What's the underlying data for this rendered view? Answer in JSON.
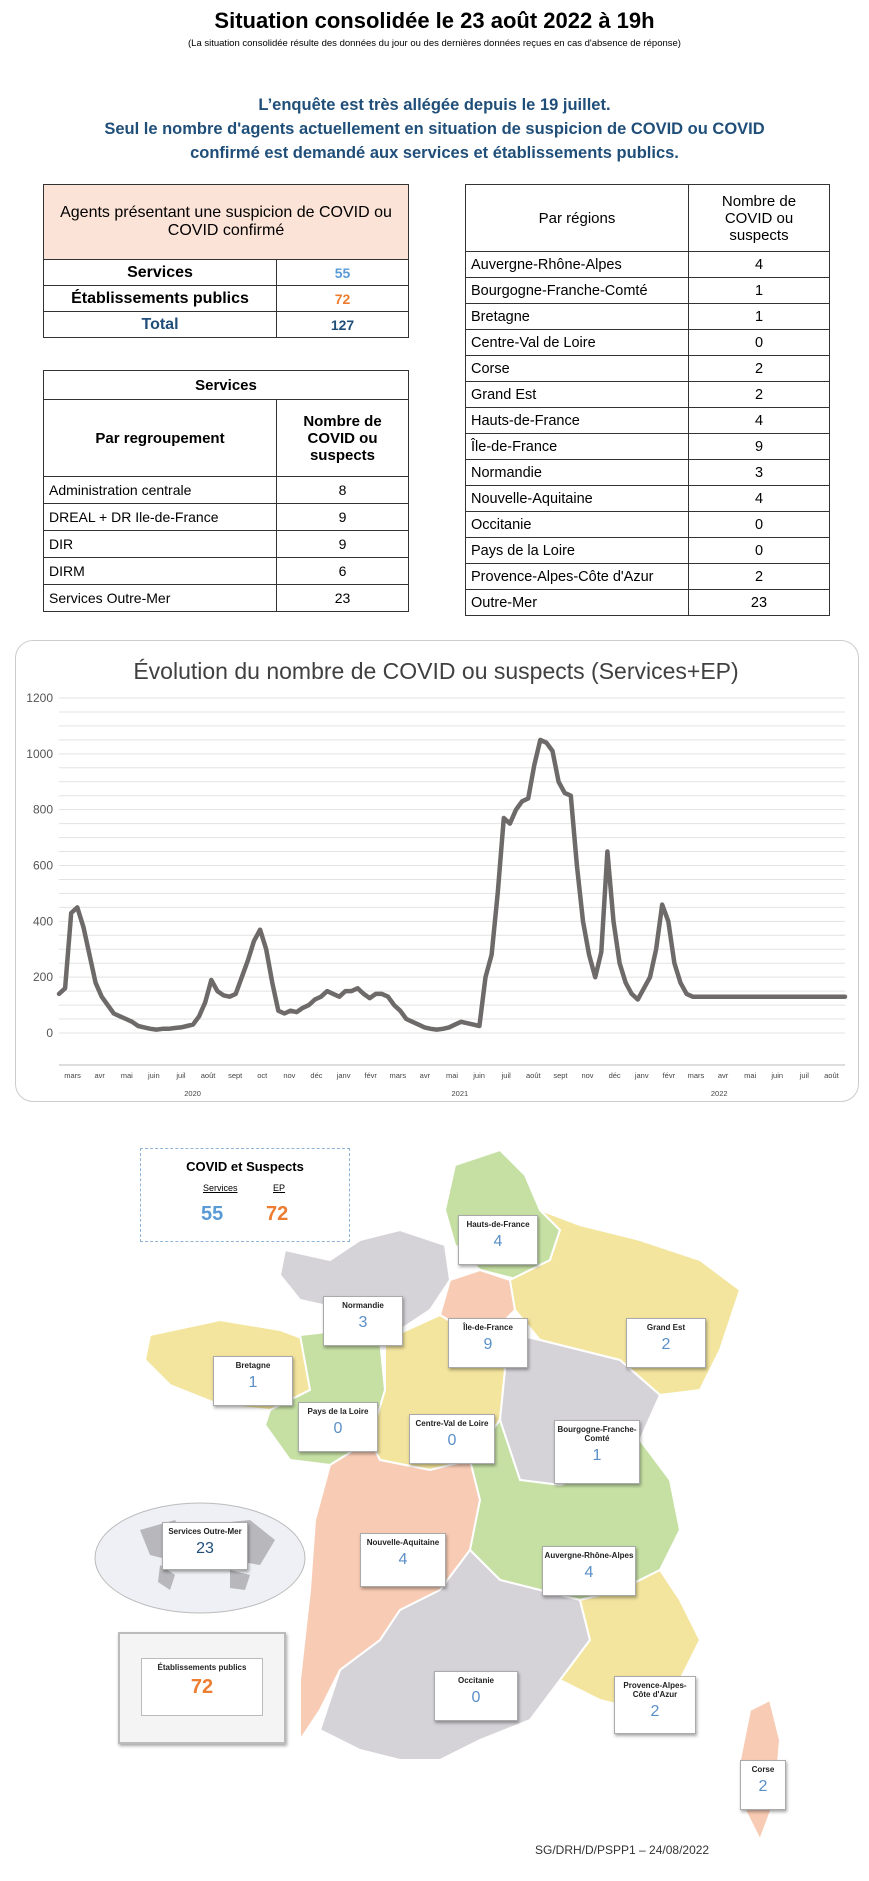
{
  "header": {
    "title": "Situation consolidée le 23 août 2022 à 19h",
    "subtitle": "(La situation consolidée résulte des données du jour ou des dernières données reçues en cas d'absence de réponse)",
    "notice_line1": "L’enquête est très allégée depuis le 19 juillet.",
    "notice_line2": "Seul le nombre d'agents actuellement en situation de suspicion de COVID ou COVID",
    "notice_line3": "confirmé est demandé aux services et établissements publics."
  },
  "summary": {
    "heading": "Agents présentant une suspicion de COVID ou COVID confirmé",
    "rows": [
      {
        "label": "Services",
        "value": "55"
      },
      {
        "label": "Établissements publics",
        "value": "72"
      },
      {
        "label": "Total",
        "value": "127"
      }
    ],
    "colors": {
      "services": "#5b9bd5",
      "ep": "#ed7d31",
      "total": "#1f4e79"
    }
  },
  "services_table": {
    "caption": "Services",
    "col1": "Par regroupement",
    "col2": "Nombre de COVID ou suspects",
    "rows": [
      {
        "name": "Administration centrale",
        "value": "8"
      },
      {
        "name": "DREAL + DR Ile-de-France",
        "value": "9"
      },
      {
        "name": "DIR",
        "value": "9"
      },
      {
        "name": "DIRM",
        "value": "6"
      },
      {
        "name": "Services Outre-Mer",
        "value": "23"
      }
    ]
  },
  "regions_table": {
    "col1": "Par régions",
    "col2": "Nombre de COVID ou suspects",
    "rows": [
      {
        "name": "Auvergne-Rhône-Alpes",
        "value": "4"
      },
      {
        "name": "Bourgogne-Franche-Comté",
        "value": "1"
      },
      {
        "name": "Bretagne",
        "value": "1"
      },
      {
        "name": "Centre-Val de Loire",
        "value": "0"
      },
      {
        "name": "Corse",
        "value": "2"
      },
      {
        "name": "Grand Est",
        "value": "2"
      },
      {
        "name": "Hauts-de-France",
        "value": "4"
      },
      {
        "name": "Île-de-France",
        "value": "9"
      },
      {
        "name": "Normandie",
        "value": "3"
      },
      {
        "name": "Nouvelle-Aquitaine",
        "value": "4"
      },
      {
        "name": "Occitanie",
        "value": "0"
      },
      {
        "name": "Pays de la Loire",
        "value": "0"
      },
      {
        "name": "Provence-Alpes-Côte d'Azur",
        "value": "2"
      },
      {
        "name": "Outre-Mer",
        "value": "23"
      }
    ]
  },
  "chart_data": {
    "type": "line",
    "title": "Évolution du nombre de COVID ou suspects (Services+EP)",
    "ylim": [
      0,
      1200
    ],
    "yticks": [
      0,
      200,
      400,
      600,
      800,
      1000,
      1200
    ],
    "grid": true,
    "line_color": "#6e6a6a",
    "x_month_labels": [
      "mars",
      "avr",
      "mai",
      "juin",
      "juil",
      "août",
      "sept",
      "oct",
      "nov",
      "déc",
      "janv",
      "févr",
      "mars",
      "avr",
      "mai",
      "juin",
      "juil",
      "août",
      "sept",
      "nov",
      "déc",
      "janv",
      "févr",
      "mars",
      "avr",
      "mai",
      "juin",
      "juil",
      "août"
    ],
    "x_years": [
      "2020",
      "2021",
      "2022"
    ],
    "x": [
      0,
      1,
      2,
      3,
      4,
      5,
      6,
      7,
      8,
      9,
      10,
      11,
      12,
      13,
      14,
      15,
      16,
      17,
      18,
      19,
      20,
      21,
      22,
      23,
      24,
      25,
      26,
      27,
      28,
      29,
      30,
      31,
      32,
      33,
      34,
      35,
      36,
      37,
      38,
      39,
      40,
      41,
      42,
      43,
      44,
      45,
      46,
      47,
      48,
      49,
      50,
      51,
      52,
      53,
      54,
      55,
      56,
      57,
      58,
      59,
      60,
      61,
      62,
      63,
      64,
      65,
      66,
      67,
      68,
      69,
      70,
      71,
      72,
      73,
      74,
      75,
      76,
      77,
      78,
      79,
      80,
      81,
      82,
      83,
      84,
      85,
      86,
      87,
      88,
      89,
      90,
      91,
      92,
      93,
      94,
      95,
      96,
      97,
      98,
      99,
      100,
      101,
      102,
      103,
      104,
      105,
      106,
      107,
      108,
      109,
      110,
      111,
      112,
      113,
      114,
      115,
      116,
      117,
      118,
      119,
      120,
      121,
      122,
      123,
      124,
      125,
      126,
      127,
      128,
      129
    ],
    "values": [
      140,
      160,
      430,
      450,
      380,
      280,
      180,
      130,
      100,
      70,
      60,
      50,
      40,
      25,
      20,
      15,
      12,
      15,
      15,
      18,
      20,
      25,
      30,
      60,
      110,
      190,
      150,
      135,
      130,
      140,
      200,
      260,
      330,
      370,
      300,
      180,
      80,
      70,
      80,
      75,
      90,
      100,
      120,
      130,
      150,
      140,
      130,
      150,
      150,
      160,
      140,
      125,
      140,
      140,
      130,
      100,
      80,
      50,
      40,
      30,
      20,
      15,
      12,
      15,
      20,
      30,
      40,
      35,
      30,
      25,
      200,
      280,
      500,
      770,
      750,
      800,
      830,
      840,
      960,
      1050,
      1040,
      1010,
      900,
      860,
      850,
      600,
      400,
      280,
      200,
      290,
      650,
      400,
      250,
      180,
      140,
      120,
      160,
      200,
      300,
      460,
      400,
      250,
      180,
      140,
      130,
      130,
      130,
      130,
      130,
      130,
      130,
      130,
      130,
      130,
      130,
      130,
      130,
      130,
      130,
      130,
      130,
      130,
      130,
      130,
      130,
      130,
      130,
      130,
      130,
      130
    ]
  },
  "map": {
    "legend_title": "COVID et Suspects",
    "legend_services_label": "Services",
    "legend_ep_label": "EP",
    "legend_services_value": "55",
    "legend_ep_value": "72",
    "regions": [
      {
        "label": "Hauts-de-France",
        "value": "4"
      },
      {
        "label": "Normandie",
        "value": "3"
      },
      {
        "label": "Île-de-France",
        "value": "9"
      },
      {
        "label": "Grand Est",
        "value": "2"
      },
      {
        "label": "Bretagne",
        "value": "1"
      },
      {
        "label": "Pays de la Loire",
        "value": "0"
      },
      {
        "label": "Centre-Val de Loire",
        "value": "0"
      },
      {
        "label": "Bourgogne-Franche-Comté",
        "value": "1"
      },
      {
        "label": "Nouvelle-Aquitaine",
        "value": "4"
      },
      {
        "label": "Auvergne-Rhône-Alpes",
        "value": "4"
      },
      {
        "label": "Occitanie",
        "value": "0"
      },
      {
        "label": "Provence-Alpes-Côte d'Azur",
        "value": "2"
      },
      {
        "label": "Corse",
        "value": "2"
      },
      {
        "label": "Services Outre-Mer",
        "value": "23"
      },
      {
        "label": "Établissements publics",
        "value": "72"
      }
    ],
    "colors": {
      "green": "#c6e0a4",
      "yellow": "#f3e59e",
      "grey": "#d5d3d8",
      "salmon": "#f8cbb4"
    }
  },
  "footer": "SG/DRH/D/PSPP1 – 24/08/2022"
}
